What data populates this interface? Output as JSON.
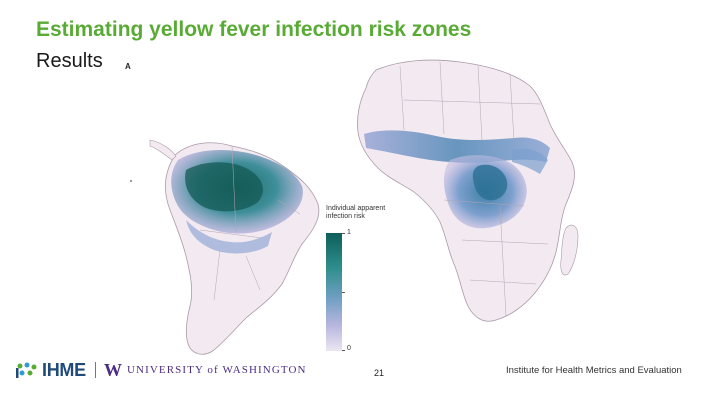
{
  "slide": {
    "title": "Estimating yellow fever infection risk zones",
    "subtitle": "Results",
    "panel_label": "A"
  },
  "map": {
    "legend": {
      "title_line1": "Individual apparent",
      "title_line2": "infection risk",
      "max_label": "1",
      "min_label": "0",
      "color_high": "#0d5e5c",
      "color_mid": "#6f9ec2",
      "color_low": "#ece6f2"
    }
  },
  "footer": {
    "ihme_logo_text": "IHME",
    "uw_mark": "W",
    "uw_text": "UNIVERSITY of WASHINGTON",
    "page_number": "21",
    "institute_text": "Institute for Health Metrics and Evaluation"
  },
  "colors": {
    "title_green": "#5aab36",
    "land_base": "#f3e9f1",
    "border": "#a99aa8",
    "ihme_blue": "#214a78",
    "uw_purple": "#4b2e83"
  }
}
